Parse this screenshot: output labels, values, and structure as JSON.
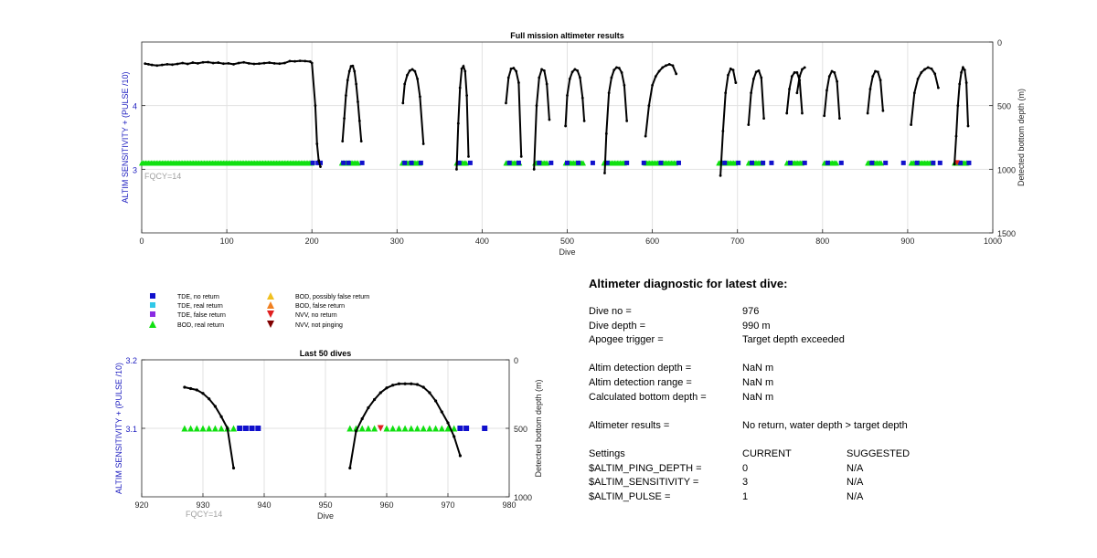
{
  "colors": {
    "tde_no": "#1010cc",
    "tde_real": "#30c8e8",
    "tde_false": "#8a2be2",
    "bod_real": "#10e010",
    "bod_possible": "#f0c020",
    "bod_false": "#f08020",
    "nvv_no": "#e02020",
    "nvv_not": "#800000",
    "line": "#000000",
    "ylabel": "#2020c0",
    "fqcy": "#a0a0a0"
  },
  "legend": [
    {
      "label": "TDE, no return",
      "marker": "square",
      "color": "#1010cc"
    },
    {
      "label": "TDE, real return",
      "marker": "square",
      "color": "#30c8e8"
    },
    {
      "label": "TDE, false return",
      "marker": "square",
      "color": "#8a2be2"
    },
    {
      "label": "BOD, real return",
      "marker": "triangle-up",
      "color": "#10e010"
    },
    {
      "label": "BOD, possibly false return",
      "marker": "triangle-up",
      "color": "#f0c020"
    },
    {
      "label": "BOD, false return",
      "marker": "triangle-up",
      "color": "#f08020"
    },
    {
      "label": "NVV, no return",
      "marker": "triangle-down",
      "color": "#e02020"
    },
    {
      "label": "NVV, not pinging",
      "marker": "triangle-down",
      "color": "#800000"
    }
  ],
  "chart_data": [
    {
      "type": "scatter",
      "title": "Full mission altimeter results",
      "xlabel": "Dive",
      "ylabel_left": "ALTIM SENSITIVITY + (PULSE /10)",
      "ylabel_right": "Detected bottom depth (m)",
      "annotation": "FQCY=14",
      "xlim": [
        0,
        1000
      ],
      "ylim_left": [
        2,
        5
      ],
      "ylim_right": [
        1500,
        0
      ],
      "xticks": [
        0,
        100,
        200,
        300,
        400,
        500,
        600,
        700,
        800,
        900,
        1000
      ],
      "yticks_left": [
        3,
        4
      ],
      "yticks_right": [
        0,
        500,
        1000,
        1500
      ],
      "grid": true,
      "marker_level": 3.1,
      "bod_runs": [
        [
          0,
          200
        ],
        [
          235,
          255
        ],
        [
          306,
          328
        ],
        [
          370,
          382
        ],
        [
          428,
          445
        ],
        [
          462,
          477
        ],
        [
          498,
          520
        ],
        [
          543,
          568
        ],
        [
          592,
          628
        ],
        [
          678,
          698
        ],
        [
          713,
          730
        ],
        [
          758,
          777
        ],
        [
          802,
          818
        ],
        [
          853,
          870
        ],
        [
          904,
          931
        ],
        [
          955,
          971
        ]
      ],
      "tde_no_return": [
        201,
        207,
        210,
        237,
        243,
        259,
        309,
        317,
        328,
        373,
        386,
        432,
        443,
        467,
        481,
        500,
        513,
        530,
        547,
        570,
        590,
        610,
        631,
        685,
        701,
        717,
        730,
        740,
        762,
        779,
        806,
        822,
        858,
        874,
        895,
        911,
        930,
        938,
        962,
        972
      ],
      "nvv_no_return": [
        958
      ],
      "bottom_depth_series": [
        {
          "x": [
            4,
            8,
            12,
            18,
            24,
            30,
            36,
            42,
            48,
            54,
            60,
            66,
            72,
            78,
            84,
            90,
            96,
            102,
            108,
            114,
            120,
            126,
            132,
            138,
            144,
            150,
            156,
            162,
            168,
            174,
            180,
            186,
            192,
            198,
            200,
            204,
            206,
            208,
            210
          ],
          "y": [
            170,
            175,
            180,
            185,
            180,
            175,
            178,
            172,
            165,
            172,
            162,
            168,
            160,
            158,
            165,
            162,
            170,
            168,
            175,
            165,
            160,
            168,
            172,
            170,
            166,
            162,
            168,
            170,
            165,
            150,
            152,
            148,
            150,
            154,
            165,
            500,
            800,
            930,
            980
          ]
        },
        {
          "x": [
            236,
            238,
            240,
            242,
            244,
            246,
            248,
            250,
            252,
            254,
            256,
            258
          ],
          "y": [
            780,
            600,
            420,
            300,
            230,
            190,
            188,
            230,
            330,
            470,
            620,
            780
          ]
        },
        {
          "x": [
            307,
            309,
            312,
            315,
            318,
            321,
            324,
            327,
            331
          ],
          "y": [
            480,
            330,
            260,
            225,
            215,
            230,
            290,
            430,
            800
          ]
        },
        {
          "x": [
            370,
            372,
            374,
            376,
            378,
            380,
            382,
            384
          ],
          "y": [
            1000,
            640,
            360,
            210,
            190,
            230,
            420,
            900
          ]
        },
        {
          "x": [
            428,
            431,
            434,
            437,
            440,
            443,
            446
          ],
          "y": [
            480,
            280,
            210,
            205,
            230,
            320,
            900
          ]
        },
        {
          "x": [
            461,
            464,
            467,
            470,
            473,
            476,
            479
          ],
          "y": [
            1000,
            500,
            280,
            215,
            225,
            330,
            610
          ]
        },
        {
          "x": [
            498,
            500,
            503,
            506,
            509,
            512,
            515,
            518,
            520
          ],
          "y": [
            660,
            420,
            290,
            235,
            215,
            225,
            280,
            440,
            620
          ]
        },
        {
          "x": [
            544,
            546,
            549,
            552,
            555,
            558,
            561,
            564,
            567,
            570
          ],
          "y": [
            1030,
            720,
            400,
            280,
            220,
            200,
            205,
            240,
            340,
            620
          ]
        },
        {
          "x": [
            592,
            596,
            600,
            604,
            608,
            612,
            616,
            620,
            624,
            628
          ],
          "y": [
            740,
            500,
            340,
            270,
            230,
            200,
            185,
            175,
            185,
            250
          ]
        },
        {
          "x": [
            680,
            683,
            686,
            689,
            692,
            695,
            698
          ],
          "y": [
            1050,
            700,
            400,
            260,
            210,
            220,
            320
          ]
        },
        {
          "x": [
            713,
            716,
            719,
            722,
            725,
            728,
            731
          ],
          "y": [
            650,
            400,
            290,
            235,
            225,
            280,
            600
          ]
        },
        {
          "x": [
            758,
            761,
            764,
            767,
            770,
            773,
            776
          ],
          "y": [
            560,
            370,
            270,
            240,
            240,
            300,
            560
          ]
        },
        {
          "x": [
            770,
            773,
            776,
            779
          ],
          "y": [
            400,
            270,
            215,
            200
          ]
        },
        {
          "x": [
            802,
            805,
            808,
            811,
            814,
            817,
            820
          ],
          "y": [
            580,
            380,
            270,
            230,
            240,
            310,
            600
          ]
        },
        {
          "x": [
            853,
            856,
            859,
            862,
            865,
            868,
            871
          ],
          "y": [
            560,
            370,
            270,
            230,
            235,
            300,
            540
          ]
        },
        {
          "x": [
            904,
            908,
            912,
            916,
            920,
            924,
            928,
            932,
            936
          ],
          "y": [
            650,
            400,
            290,
            240,
            215,
            200,
            210,
            250,
            360
          ]
        },
        {
          "x": [
            955,
            957,
            959,
            961,
            963,
            965,
            967,
            969,
            971
          ],
          "y": [
            960,
            740,
            500,
            330,
            240,
            200,
            220,
            320,
            660
          ]
        }
      ]
    },
    {
      "type": "scatter",
      "title": "Last 50 dives",
      "xlabel": "Dive",
      "ylabel_left": "ALTIM SENSITIVITY + (PULSE /10)",
      "ylabel_right": "Detected bottom depth (m)",
      "annotation": "FQCY=14",
      "xlim": [
        920,
        980
      ],
      "ylim_left": [
        3,
        3.2
      ],
      "ylim_right": [
        1000,
        0
      ],
      "xticks": [
        920,
        930,
        940,
        950,
        960,
        970,
        980
      ],
      "yticks_left": [
        3.1,
        3.2
      ],
      "yticks_right": [
        0,
        500,
        1000
      ],
      "grid": true,
      "marker_level": 3.1,
      "bod_real_return": [
        927,
        928,
        929,
        930,
        931,
        932,
        933,
        934,
        935,
        954,
        955,
        956,
        957,
        958,
        960,
        961,
        962,
        963,
        964,
        965,
        966,
        967,
        968,
        969,
        970,
        971
      ],
      "tde_no_return": [
        936,
        937,
        938,
        939,
        972,
        973,
        976
      ],
      "nvv_no_return": [
        959
      ],
      "bottom_depth_series": [
        {
          "x": [
            927,
            928,
            929,
            930,
            931,
            932,
            933,
            934,
            935
          ],
          "y": [
            200,
            210,
            220,
            245,
            285,
            340,
            415,
            500,
            790
          ]
        },
        {
          "x": [
            954,
            955,
            956,
            957,
            958,
            959,
            960,
            961,
            962,
            963,
            964,
            965,
            966,
            967,
            968,
            969,
            970,
            971,
            972
          ],
          "y": [
            790,
            520,
            430,
            350,
            290,
            240,
            205,
            185,
            175,
            175,
            175,
            180,
            200,
            240,
            300,
            380,
            460,
            560,
            700
          ]
        }
      ]
    }
  ],
  "diagnostic": {
    "title": "Altimeter diagnostic for latest dive:",
    "dive_no_label": "Dive no =",
    "dive_no": "976",
    "dive_depth_label": "Dive depth =",
    "dive_depth": "990 m",
    "apogee_label": "Apogee trigger =",
    "apogee": "Target depth exceeded",
    "detection_depth_label": "Altim detection depth =",
    "detection_depth": "NaN m",
    "detection_range_label": "Altim detection range =",
    "detection_range": "NaN m",
    "bottom_depth_label": "Calculated bottom depth =",
    "bottom_depth": "NaN m",
    "results_label": "Altimeter results =",
    "results": "No return, water depth > target depth",
    "settings_label": "Settings",
    "current_header": "CURRENT",
    "suggested_header": "SUGGESTED",
    "settings": [
      {
        "name": "$ALTIM_PING_DEPTH =",
        "current": "0",
        "suggested": "N/A"
      },
      {
        "name": "$ALTIM_SENSITIVITY =",
        "current": "3",
        "suggested": "N/A"
      },
      {
        "name": "$ALTIM_PULSE =",
        "current": "1",
        "suggested": "N/A"
      }
    ]
  }
}
